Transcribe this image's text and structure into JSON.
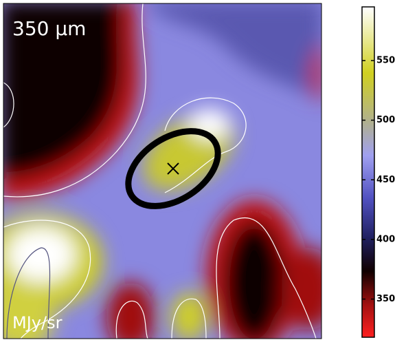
{
  "chart_data": {
    "type": "image",
    "title": "350 μm",
    "colorbar_label": "MJy/sr",
    "clim": [
      318,
      595
    ],
    "cticks": [
      350,
      400,
      450,
      500,
      550
    ]
  }
}
